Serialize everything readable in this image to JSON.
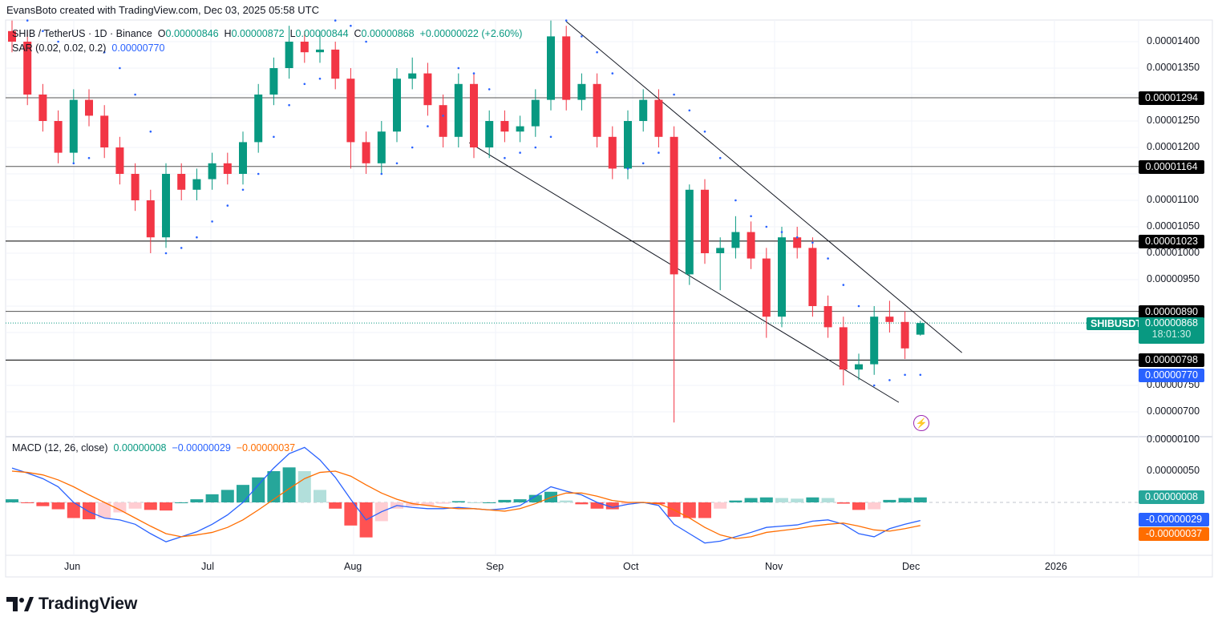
{
  "credit": "EvansBoto created with TradingView.com, Dec 03, 2025 05:58 UTC",
  "legend": {
    "symbol": "SHIB / TetherUS · 1D · Binance",
    "o_label": "O",
    "o": "0.00000846",
    "h_label": "H",
    "h": "0.00000872",
    "l_label": "L",
    "l": "0.00000844",
    "c_label": "C",
    "c": "0.00000868",
    "change": "+0.00000022 (+2.60%)",
    "sar_label": "SAR (0.02, 0.02, 0.2)",
    "sar_value": "0.00000770",
    "macd_label": "MACD (12, 26, close)",
    "macd_hist": "0.00000008",
    "macd_line": "−0.00000029",
    "macd_signal": "−0.00000037"
  },
  "colors": {
    "up": "#089981",
    "down": "#f23645",
    "sar": "#2962ff",
    "macd": "#2962ff",
    "signal": "#ff6d00",
    "hist_up": "#26a69a",
    "hist_up_weak": "#b2dfdb",
    "hist_dn": "#ff5252",
    "hist_dn_weak": "#ffcdd2",
    "event": "#9c27b0"
  },
  "price_ticks": [
    "0.00001400",
    "0.00001350",
    "0.00001250",
    "0.00001200",
    "0.00001100",
    "0.00001050",
    "0.00001000",
    "0.00000950",
    "0.00000750",
    "0.00000700"
  ],
  "macd_ticks": [
    "0.00000100",
    "0.00000050"
  ],
  "x_ticks": [
    "Jun",
    "Jul",
    "Aug",
    "Sep",
    "Oct",
    "Nov",
    "Dec",
    "2026"
  ],
  "levels": [
    "0.00001294",
    "0.00001164",
    "0.00001023",
    "0.00000890",
    "0.00000798"
  ],
  "current": {
    "symbol": "SHIBUSDT",
    "price": "0.00000868",
    "countdown": "18:01:30",
    "sar": "0.00000770"
  },
  "macd_tags": {
    "hist": "0.00000008",
    "macd": "-0.00000029",
    "signal": "-0.00000037"
  },
  "brand": "TradingView",
  "chart_data": {
    "type": "candlestick",
    "interval": "1D",
    "candles_ohlc": [
      [
        1.42e-05,
        1.44e-05,
        1.38e-05,
        1.4e-05
      ],
      [
        1.4e-05,
        1.42e-05,
        1.28e-05,
        1.3e-05
      ],
      [
        1.3e-05,
        1.32e-05,
        1.23e-05,
        1.25e-05
      ],
      [
        1.25e-05,
        1.27e-05,
        1.17e-05,
        1.19e-05
      ],
      [
        1.19e-05,
        1.31e-05,
        1.17e-05,
        1.29e-05
      ],
      [
        1.29e-05,
        1.31e-05,
        1.24e-05,
        1.26e-05
      ],
      [
        1.26e-05,
        1.28e-05,
        1.18e-05,
        1.2e-05
      ],
      [
        1.2e-05,
        1.22e-05,
        1.13e-05,
        1.15e-05
      ],
      [
        1.15e-05,
        1.17e-05,
        1.08e-05,
        1.1e-05
      ],
      [
        1.1e-05,
        1.12e-05,
        1e-05,
        1.03e-05
      ],
      [
        1.03e-05,
        1.17e-05,
        1.01e-05,
        1.15e-05
      ],
      [
        1.15e-05,
        1.17e-05,
        1.1e-05,
        1.12e-05
      ],
      [
        1.12e-05,
        1.16e-05,
        1.1e-05,
        1.14e-05
      ],
      [
        1.14e-05,
        1.19e-05,
        1.12e-05,
        1.17e-05
      ],
      [
        1.17e-05,
        1.19e-05,
        1.13e-05,
        1.15e-05
      ],
      [
        1.15e-05,
        1.23e-05,
        1.13e-05,
        1.21e-05
      ],
      [
        1.21e-05,
        1.32e-05,
        1.19e-05,
        1.3e-05
      ],
      [
        1.3e-05,
        1.37e-05,
        1.28e-05,
        1.35e-05
      ],
      [
        1.35e-05,
        1.43e-05,
        1.33e-05,
        1.4e-05
      ],
      [
        1.4e-05,
        1.42e-05,
        1.36e-05,
        1.38e-05
      ],
      [
        1.38e-05,
        1.42e-05,
        1.36e-05,
        1.385e-05
      ],
      [
        1.385e-05,
        1.4e-05,
        1.31e-05,
        1.33e-05
      ],
      [
        1.33e-05,
        1.35e-05,
        1.16e-05,
        1.21e-05
      ],
      [
        1.21e-05,
        1.23e-05,
        1.15e-05,
        1.17e-05
      ],
      [
        1.17e-05,
        1.25e-05,
        1.15e-05,
        1.23e-05
      ],
      [
        1.23e-05,
        1.35e-05,
        1.21e-05,
        1.33e-05
      ],
      [
        1.33e-05,
        1.37e-05,
        1.31e-05,
        1.34e-05
      ],
      [
        1.34e-05,
        1.36e-05,
        1.26e-05,
        1.28e-05
      ],
      [
        1.28e-05,
        1.3e-05,
        1.2e-05,
        1.22e-05
      ],
      [
        1.22e-05,
        1.34e-05,
        1.2e-05,
        1.32e-05
      ],
      [
        1.32e-05,
        1.34e-05,
        1.18e-05,
        1.2e-05
      ],
      [
        1.2e-05,
        1.27e-05,
        1.18e-05,
        1.25e-05
      ],
      [
        1.25e-05,
        1.27e-05,
        1.21e-05,
        1.23e-05
      ],
      [
        1.23e-05,
        1.26e-05,
        1.21e-05,
        1.24e-05
      ],
      [
        1.24e-05,
        1.31e-05,
        1.22e-05,
        1.29e-05
      ],
      [
        1.29e-05,
        1.44e-05,
        1.27e-05,
        1.41e-05
      ],
      [
        1.41e-05,
        1.43e-05,
        1.27e-05,
        1.29e-05
      ],
      [
        1.29e-05,
        1.34e-05,
        1.27e-05,
        1.32e-05
      ],
      [
        1.32e-05,
        1.34e-05,
        1.2e-05,
        1.22e-05
      ],
      [
        1.22e-05,
        1.24e-05,
        1.14e-05,
        1.16e-05
      ],
      [
        1.16e-05,
        1.27e-05,
        1.14e-05,
        1.25e-05
      ],
      [
        1.25e-05,
        1.31e-05,
        1.23e-05,
        1.29e-05
      ],
      [
        1.29e-05,
        1.31e-05,
        1.2e-05,
        1.22e-05
      ],
      [
        1.22e-05,
        1.24e-05,
        6.8e-06,
        9.6e-06
      ],
      [
        9.6e-06,
        1.13e-05,
        9.4e-06,
        1.12e-05
      ],
      [
        1.12e-05,
        1.14e-05,
        9.8e-06,
        1e-05
      ],
      [
        1e-05,
        1.03e-05,
        9.3e-06,
        1.01e-05
      ],
      [
        1.01e-05,
        1.07e-05,
        9.9e-06,
        1.04e-05
      ],
      [
        1.04e-05,
        1.06e-05,
        9.7e-06,
        9.9e-06
      ],
      [
        9.9e-06,
        1.01e-05,
        8.4e-06,
        8.8e-06
      ],
      [
        8.8e-06,
        1.05e-05,
        8.6e-06,
        1.03e-05
      ],
      [
        1.03e-05,
        1.05e-05,
        9.9e-06,
        1.01e-05
      ],
      [
        1.01e-05,
        1.03e-05,
        8.8e-06,
        9e-06
      ],
      [
        9e-06,
        9.2e-06,
        8.4e-06,
        8.6e-06
      ],
      [
        8.6e-06,
        8.8e-06,
        7.5e-06,
        7.8e-06
      ],
      [
        7.8e-06,
        8.1e-06,
        7.6e-06,
        7.9e-06
      ],
      [
        7.9e-06,
        9e-06,
        7.7e-06,
        8.8e-06
      ],
      [
        8.8e-06,
        9.1e-06,
        8.5e-06,
        8.7e-06
      ],
      [
        8.7e-06,
        8.9e-06,
        8e-06,
        8.2e-06
      ],
      [
        8.46e-06,
        8.72e-06,
        8.44e-06,
        8.68e-06
      ]
    ],
    "sar": [
      1.46e-05,
      1.44e-05,
      1.42e-05,
      1.4e-05,
      1.17e-05,
      1.18e-05,
      1.38e-05,
      1.35e-05,
      1.3e-05,
      1.23e-05,
      1e-05,
      1.01e-05,
      1.03e-05,
      1.06e-05,
      1.09e-05,
      1.12e-05,
      1.15e-05,
      1.22e-05,
      1.28e-05,
      1.32e-05,
      1.33e-05,
      1.44e-05,
      1.43e-05,
      1.4e-05,
      1.15e-05,
      1.17e-05,
      1.2e-05,
      1.24e-05,
      1.26e-05,
      1.35e-05,
      1.34e-05,
      1.31e-05,
      1.18e-05,
      1.19e-05,
      1.2e-05,
      1.22e-05,
      1.44e-05,
      1.41e-05,
      1.38e-05,
      1.34e-05,
      1.16e-05,
      1.17e-05,
      1.19e-05,
      1.3e-05,
      1.27e-05,
      1.23e-05,
      1.18e-05,
      1.1e-05,
      1.07e-05,
      1.05e-05,
      1.04e-05,
      1.03e-05,
      1.02e-05,
      9.9e-06,
      9.4e-06,
      9e-06,
      7.5e-06,
      7.6e-06,
      7.7e-06,
      7.7e-06
    ],
    "macd": [
      5.5e-07,
      4.7e-07,
      3.8e-07,
      2.5e-07,
      0,
      -1.5e-07,
      -2.5e-07,
      -2.8e-07,
      -3.5e-07,
      -5e-07,
      -6.3e-07,
      -5.5e-07,
      -4.7e-07,
      -3.5e-07,
      -2e-07,
      0,
      2.8e-07,
      5.5e-07,
      7.8e-07,
      8.8e-07,
      6.8e-07,
      4e-07,
      5e-08,
      -2.8e-07,
      -1.5e-07,
      -5e-08,
      -8e-08,
      -1e-07,
      -1e-07,
      -8e-08,
      -1e-07,
      -1.2e-07,
      -1e-07,
      -5e-08,
      1e-07,
      2.5e-07,
      1.8e-07,
      1.2e-07,
      0,
      -8e-08,
      -3e-08,
      0,
      -5e-08,
      -3.5e-07,
      -5e-07,
      -6.5e-07,
      -6.2e-07,
      -5.5e-07,
      -4.8e-07,
      -4e-07,
      -3.8e-07,
      -3.6e-07,
      -3e-07,
      -2.8e-07,
      -3.5e-07,
      -5e-07,
      -5.5e-07,
      -4.2e-07,
      -3.5e-07,
      -2.9e-07
    ],
    "signal": [
      5e-07,
      4.8e-07,
      4.4e-07,
      3.6e-07,
      2.5e-07,
      1.2e-07,
      0,
      -1.2e-07,
      -2.5e-07,
      -3.8e-07,
      -5e-07,
      -5.5e-07,
      -5.2e-07,
      -4.8e-07,
      -4e-07,
      -2.8e-07,
      -1.2e-07,
      5e-08,
      2.2e-07,
      3.8e-07,
      4.8e-07,
      5e-07,
      4.2e-07,
      2.8e-07,
      1.5e-07,
      5e-08,
      -2e-08,
      -5e-08,
      -8e-08,
      -1e-07,
      -1e-07,
      -1.2e-07,
      -1.4e-07,
      -1e-07,
      -2e-08,
      8e-08,
      1.5e-07,
      1.5e-07,
      1e-07,
      3e-08,
      0,
      0,
      -2e-08,
      -1.2e-07,
      -2.5e-07,
      -4e-07,
      -5.2e-07,
      -5.8e-07,
      -5.5e-07,
      -4.8e-07,
      -4.5e-07,
      -4.2e-07,
      -3.8e-07,
      -3.5e-07,
      -3.3e-07,
      -3.8e-07,
      -4.4e-07,
      -4.6e-07,
      -4.2e-07,
      -3.7e-07
    ],
    "trendlines": [
      {
        "from": {
          "candle": 36,
          "price": 1.438e-05
        },
        "to": {
          "candle": 61.7,
          "price": 8.12e-06
        }
      },
      {
        "from": {
          "candle": 29.7,
          "price": 1.209e-05
        },
        "to": {
          "candle": 57.6,
          "price": 7.18e-06
        }
      }
    ],
    "horizontal_levels": [
      1.294e-05,
      1.164e-05,
      1.023e-05,
      8.9e-06,
      7.98e-06
    ],
    "ylim": [
      6.6e-06,
      1.44e-05
    ]
  }
}
